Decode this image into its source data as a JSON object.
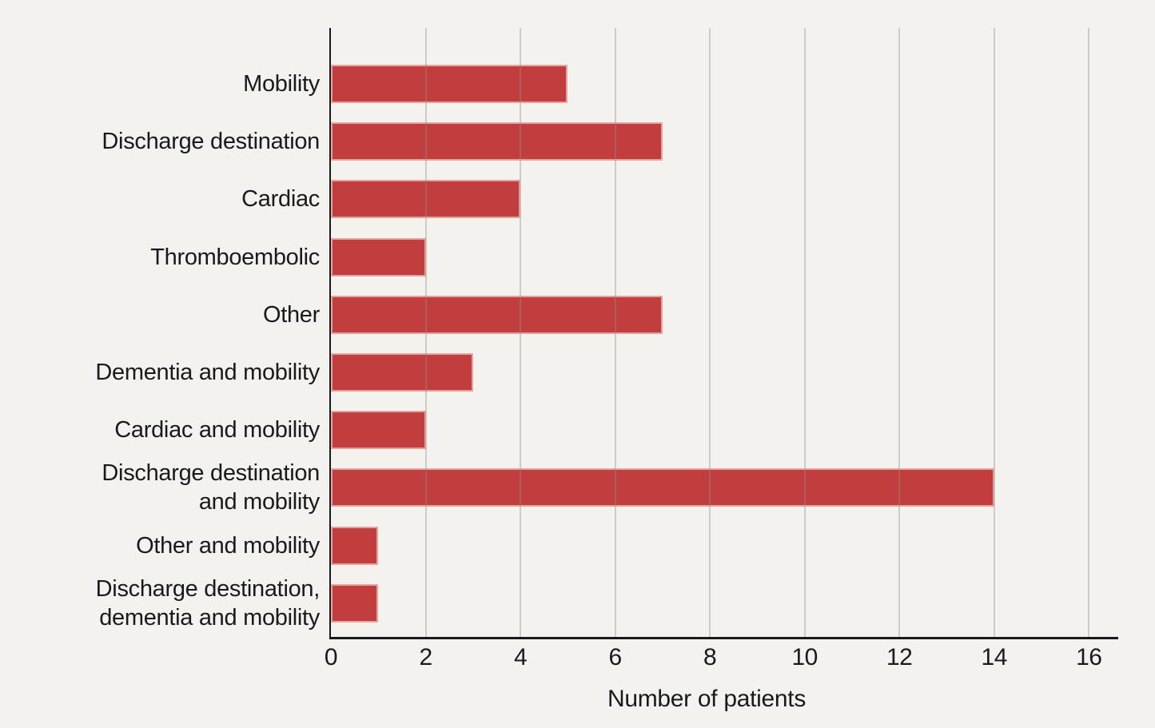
{
  "page": {
    "background": "#f3f2ee"
  },
  "chart_data": {
    "type": "bar",
    "orientation": "horizontal",
    "title": "",
    "xlabel": "Number of patients",
    "ylabel": "",
    "categories": [
      "Mobility",
      "Discharge destination",
      "Cardiac",
      "Thromboembolic",
      "Other",
      "Dementia and mobility",
      "Cardiac and mobility",
      "Discharge destination and mobility",
      "Other and mobility",
      "Discharge destination, dementia and mobility"
    ],
    "categories_wrapped": [
      "Mobility",
      "Discharge destination",
      "Cardiac",
      "Thromboembolic",
      "Other",
      "Dementia and mobility",
      "Cardiac and mobility",
      "Discharge destination\nand mobility",
      "Other and mobility",
      "Discharge destination,\ndementia and mobility"
    ],
    "values": [
      5,
      7,
      4,
      2,
      7,
      3,
      2,
      14,
      1,
      1
    ],
    "x_ticks": [
      0,
      2,
      4,
      6,
      8,
      10,
      12,
      14,
      16
    ],
    "xlim": [
      0,
      16.62
    ],
    "grid": true,
    "gridlines_at": [
      2,
      4,
      6,
      8,
      10,
      12,
      14,
      16
    ],
    "legend": "none",
    "bar_color": "#c23e3e",
    "axis_color": "#1a1a1a",
    "gridline_color": "#d9d8d5",
    "text_color": "#1a1a1a"
  }
}
